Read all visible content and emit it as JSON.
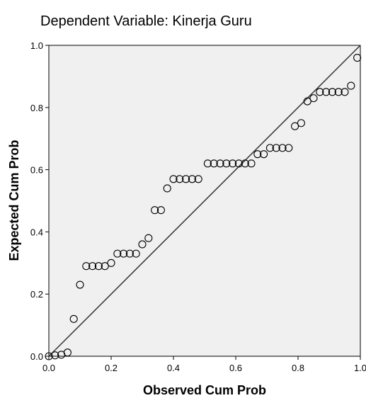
{
  "chart_data": {
    "type": "scatter",
    "title": "Dependent Variable: Kinerja Guru",
    "xlabel": "Observed Cum Prob",
    "ylabel": "Expected Cum Prob",
    "xlim": [
      0,
      1
    ],
    "ylim": [
      0,
      1
    ],
    "x_ticks": [
      "0.0",
      "0.2",
      "0.4",
      "0.6",
      "0.8",
      "1.0"
    ],
    "y_ticks": [
      "0.0",
      "0.2",
      "0.4",
      "0.6",
      "0.8",
      "1.0"
    ],
    "grid": false,
    "plot_background": "#f0f0f0",
    "reference_line": [
      [
        0,
        0
      ],
      [
        1,
        1
      ]
    ],
    "series": [
      {
        "marker": "open-circle",
        "x": [
          0.0,
          0.02,
          0.04,
          0.06,
          0.08,
          0.1,
          0.12,
          0.14,
          0.16,
          0.18,
          0.2,
          0.22,
          0.24,
          0.26,
          0.28,
          0.3,
          0.32,
          0.34,
          0.36,
          0.38,
          0.4,
          0.42,
          0.44,
          0.46,
          0.48,
          0.51,
          0.53,
          0.55,
          0.57,
          0.59,
          0.61,
          0.63,
          0.65,
          0.67,
          0.69,
          0.71,
          0.73,
          0.75,
          0.77,
          0.79,
          0.81,
          0.83,
          0.85,
          0.87,
          0.89,
          0.91,
          0.93,
          0.95,
          0.97,
          0.99
        ],
        "y": [
          0.0,
          0.003,
          0.005,
          0.012,
          0.12,
          0.23,
          0.29,
          0.29,
          0.29,
          0.29,
          0.3,
          0.33,
          0.33,
          0.33,
          0.33,
          0.36,
          0.38,
          0.47,
          0.47,
          0.54,
          0.57,
          0.57,
          0.57,
          0.57,
          0.57,
          0.62,
          0.62,
          0.62,
          0.62,
          0.62,
          0.62,
          0.62,
          0.62,
          0.65,
          0.65,
          0.67,
          0.67,
          0.67,
          0.67,
          0.74,
          0.75,
          0.82,
          0.83,
          0.85,
          0.85,
          0.85,
          0.85,
          0.85,
          0.87,
          0.96
        ]
      }
    ]
  }
}
